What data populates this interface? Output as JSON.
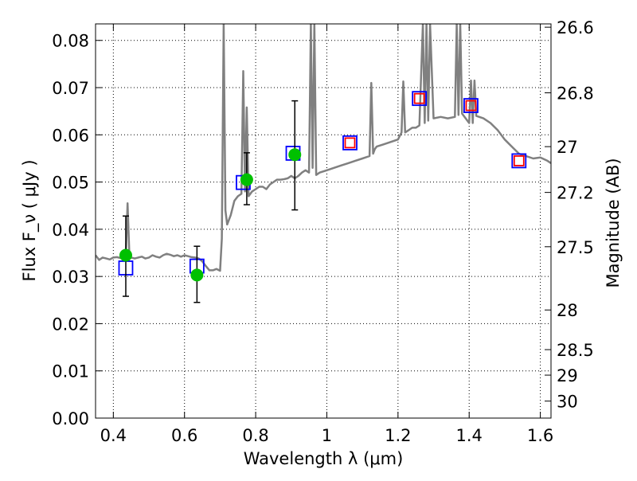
{
  "chart_data": {
    "type": "scatter",
    "title": "",
    "xlabel": "Wavelength  λ (μm)",
    "ylabel": "Flux  F_ν  ( μJy )",
    "y2label": "Magnitude (AB)",
    "xlim": [
      0.35,
      1.63
    ],
    "ylim": [
      0.0,
      0.0835
    ],
    "grid": true,
    "x_ticks": [
      0.4,
      0.6,
      0.8,
      1.0,
      1.2,
      1.4,
      1.6
    ],
    "x_tick_labels": [
      "0.4",
      "0.6",
      "0.8",
      "1",
      "1.2",
      "1.4",
      "1.6"
    ],
    "y_ticks": [
      0.0,
      0.01,
      0.02,
      0.03,
      0.04,
      0.05,
      0.06,
      0.07,
      0.08
    ],
    "y_tick_labels": [
      "0.00",
      "0.01",
      "0.02",
      "0.03",
      "0.04",
      "0.05",
      "0.06",
      "0.07",
      "0.08"
    ],
    "y2_ticks": [
      {
        "label": "26.6",
        "flux": 0.0828
      },
      {
        "label": "26.8",
        "flux": 0.0689
      },
      {
        "label": "27",
        "flux": 0.0575
      },
      {
        "label": "27.2",
        "flux": 0.0478
      },
      {
        "label": "27.5",
        "flux": 0.0363
      },
      {
        "label": "28",
        "flux": 0.0229
      },
      {
        "label": "28.5",
        "flux": 0.0145
      },
      {
        "label": "29",
        "flux": 0.0091
      },
      {
        "label": "30",
        "flux": 0.0036
      }
    ],
    "series": [
      {
        "kind": "line",
        "color": "#808080",
        "x": [
          0.35,
          0.36,
          0.37,
          0.38,
          0.39,
          0.4,
          0.41,
          0.42,
          0.43,
          0.435,
          0.44,
          0.445,
          0.45,
          0.46,
          0.47,
          0.48,
          0.49,
          0.5,
          0.51,
          0.52,
          0.53,
          0.54,
          0.55,
          0.56,
          0.57,
          0.58,
          0.59,
          0.6,
          0.61,
          0.62,
          0.63,
          0.64,
          0.65,
          0.66,
          0.67,
          0.68,
          0.69,
          0.7,
          0.705,
          0.71,
          0.715,
          0.72,
          0.73,
          0.74,
          0.75,
          0.76,
          0.765,
          0.77,
          0.775,
          0.78,
          0.79,
          0.8,
          0.81,
          0.82,
          0.83,
          0.84,
          0.85,
          0.86,
          0.87,
          0.88,
          0.89,
          0.9,
          0.91,
          0.92,
          0.93,
          0.94,
          0.95,
          0.955,
          0.96,
          0.965,
          0.97,
          0.98,
          1.0,
          1.02,
          1.04,
          1.06,
          1.08,
          1.1,
          1.12,
          1.125,
          1.13,
          1.135,
          1.14,
          1.16,
          1.18,
          1.2,
          1.21,
          1.215,
          1.22,
          1.23,
          1.24,
          1.25,
          1.26,
          1.27,
          1.275,
          1.28,
          1.285,
          1.29,
          1.3,
          1.32,
          1.34,
          1.36,
          1.365,
          1.37,
          1.375,
          1.38,
          1.4,
          1.405,
          1.41,
          1.415,
          1.42,
          1.44,
          1.46,
          1.48,
          1.5,
          1.52,
          1.54,
          1.56,
          1.58,
          1.6,
          1.62,
          1.63
        ],
        "y": [
          0.0345,
          0.0335,
          0.034,
          0.0338,
          0.0336,
          0.034,
          0.0341,
          0.0339,
          0.034,
          0.034,
          0.0455,
          0.0345,
          0.034,
          0.0338,
          0.034,
          0.0342,
          0.0338,
          0.034,
          0.0345,
          0.0342,
          0.034,
          0.0345,
          0.0348,
          0.0346,
          0.0343,
          0.0345,
          0.0342,
          0.0345,
          0.0343,
          0.0341,
          0.034,
          0.0338,
          0.0332,
          0.0322,
          0.0313,
          0.0313,
          0.0316,
          0.0312,
          0.038,
          0.0835,
          0.044,
          0.041,
          0.043,
          0.046,
          0.047,
          0.0475,
          0.0735,
          0.048,
          0.0658,
          0.047,
          0.048,
          0.0485,
          0.049,
          0.049,
          0.0485,
          0.0495,
          0.05,
          0.0505,
          0.0505,
          0.0506,
          0.0508,
          0.0513,
          0.0508,
          0.0513,
          0.052,
          0.0525,
          0.052,
          0.0835,
          0.053,
          0.0835,
          0.0515,
          0.052,
          0.0525,
          0.053,
          0.0535,
          0.054,
          0.0545,
          0.055,
          0.0555,
          0.071,
          0.056,
          0.057,
          0.0575,
          0.058,
          0.0585,
          0.059,
          0.0605,
          0.0713,
          0.0605,
          0.061,
          0.0615,
          0.0615,
          0.062,
          0.0835,
          0.0625,
          0.0835,
          0.063,
          0.0835,
          0.0635,
          0.0638,
          0.0635,
          0.0638,
          0.0835,
          0.0642,
          0.0835,
          0.0645,
          0.0625,
          0.0715,
          0.0625,
          0.0715,
          0.064,
          0.0635,
          0.0625,
          0.061,
          0.059,
          0.0575,
          0.056,
          0.0555,
          0.055,
          0.0552,
          0.0545,
          0.054
        ]
      },
      {
        "kind": "square-markers",
        "edge_color": "#0000ff",
        "x": [
          0.435,
          0.635,
          0.765,
          0.905,
          1.065,
          1.26,
          1.405,
          1.54
        ],
        "y": [
          0.0318,
          0.0322,
          0.0499,
          0.0561,
          0.0583,
          0.0677,
          0.0662,
          0.0545
        ]
      },
      {
        "kind": "square-markers",
        "edge_color": "#ff0000",
        "x": [
          1.065,
          1.26,
          1.405,
          1.54
        ],
        "y": [
          0.0583,
          0.0677,
          0.0662,
          0.0545
        ]
      },
      {
        "kind": "circle-errorbar",
        "color": "#00c000",
        "x": [
          0.435,
          0.635,
          0.775,
          0.91
        ],
        "y": [
          0.0345,
          0.0303,
          0.0505,
          0.0558
        ],
        "yerr_low": [
          0.0258,
          0.0245,
          0.0452,
          0.0441
        ],
        "yerr_high": [
          0.0428,
          0.0364,
          0.0562,
          0.0672
        ]
      }
    ]
  }
}
